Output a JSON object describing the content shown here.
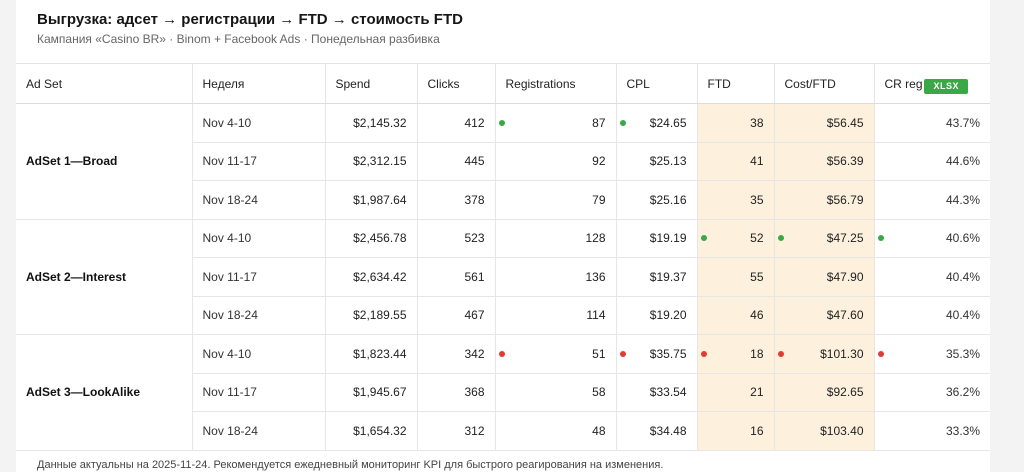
{
  "header": {
    "title": "Выгрузка: адсет → регистрации → FTD → стоимость FTD",
    "subtitle": "Кампания «Casino BR» · Binom + Facebook Ads · Понедельная разбивка"
  },
  "table": {
    "columns": [
      "Ad Set",
      "Неделя",
      "Spend",
      "Clicks",
      "Registrations",
      "CPL",
      "FTD",
      "Cost/FTD",
      "CR reg→FTD"
    ],
    "export_badge": "XLSX",
    "groups": [
      {
        "adset": "AdSet 1—Broad",
        "rows": [
          {
            "week": "Nov 4-10",
            "spend": "$2,145.32",
            "clicks": "412",
            "registrations": "87",
            "cpl": "$24.65",
            "ftd": "38",
            "cost_ftd": "$56.45",
            "cr": "43.7%"
          },
          {
            "week": "Nov 11-17",
            "spend": "$2,312.15",
            "clicks": "445",
            "registrations": "92",
            "cpl": "$25.13",
            "ftd": "41",
            "cost_ftd": "$56.39",
            "cr": "44.6%"
          },
          {
            "week": "Nov 18-24",
            "spend": "$1,987.64",
            "clicks": "378",
            "registrations": "79",
            "cpl": "$25.16",
            "ftd": "35",
            "cost_ftd": "$56.79",
            "cr": "44.3%"
          }
        ]
      },
      {
        "adset": "AdSet 2—Interest",
        "rows": [
          {
            "week": "Nov 4-10",
            "spend": "$2,456.78",
            "clicks": "523",
            "registrations": "128",
            "cpl": "$19.19",
            "ftd": "52",
            "cost_ftd": "$47.25",
            "cr": "40.6%"
          },
          {
            "week": "Nov 11-17",
            "spend": "$2,634.42",
            "clicks": "561",
            "registrations": "136",
            "cpl": "$19.37",
            "ftd": "55",
            "cost_ftd": "$47.90",
            "cr": "40.4%"
          },
          {
            "week": "Nov 18-24",
            "spend": "$2,189.55",
            "clicks": "467",
            "registrations": "114",
            "cpl": "$19.20",
            "ftd": "46",
            "cost_ftd": "$47.60",
            "cr": "40.4%"
          }
        ]
      },
      {
        "adset": "AdSet 3—LookAlike",
        "rows": [
          {
            "week": "Nov 4-10",
            "spend": "$1,823.44",
            "clicks": "342",
            "registrations": "51",
            "cpl": "$35.75",
            "ftd": "18",
            "cost_ftd": "$101.30",
            "cr": "35.3%"
          },
          {
            "week": "Nov 11-17",
            "spend": "$1,945.67",
            "clicks": "368",
            "registrations": "58",
            "cpl": "$33.54",
            "ftd": "21",
            "cost_ftd": "$92.65",
            "cr": "36.2%"
          },
          {
            "week": "Nov 18-24",
            "spend": "$1,654.32",
            "clicks": "312",
            "registrations": "48",
            "cpl": "$34.48",
            "ftd": "16",
            "cost_ftd": "$103.40",
            "cr": "33.3%"
          }
        ]
      }
    ],
    "markers": {
      "positive_color": "#3aa845",
      "negative_color": "#e23b34",
      "highlight_color": "#fdf1de"
    }
  },
  "footer": {
    "note": "Данные актуальны на 2025-11-24. Рекомендуется ежедневный мониторинг KPI для быстрого реагирования на изменения."
  }
}
